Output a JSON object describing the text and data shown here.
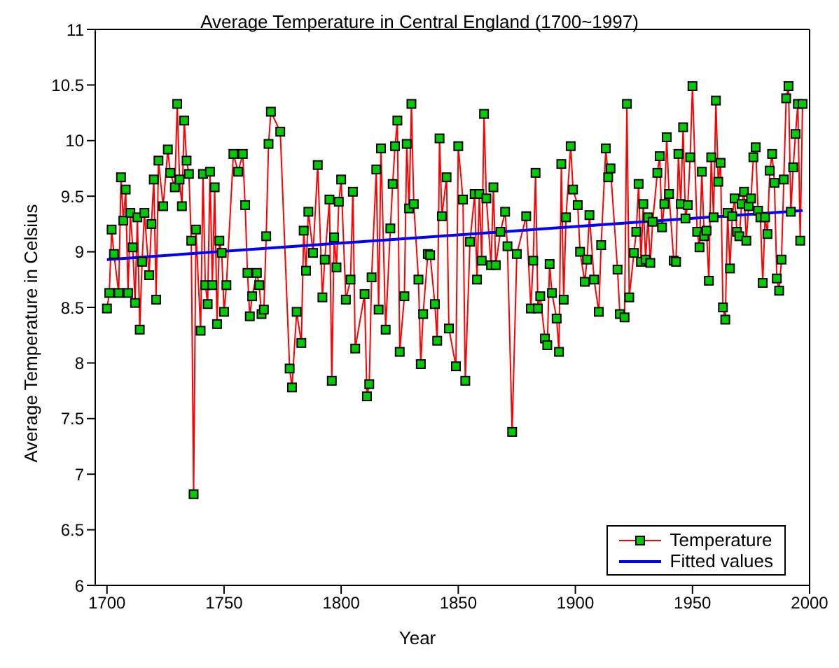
{
  "chart_data": {
    "type": "line",
    "title": "Average Temperature in Central England (1700~1997)",
    "xlabel": "Year",
    "ylabel": "Average Temperature in Celsius",
    "xlim": [
      1695,
      2000
    ],
    "xticks": [
      1700,
      1750,
      1800,
      1850,
      1900,
      1950,
      2000
    ],
    "ylim": [
      6,
      11
    ],
    "yticks": [
      6,
      6.5,
      7,
      7.5,
      8,
      8.5,
      9,
      9.5,
      10,
      10.5,
      11
    ],
    "legend": "bottom right",
    "series": [
      {
        "name": "Temperature",
        "color": "#ff0000",
        "marker": "square",
        "line_style": "solid",
        "x": [
          1700,
          1701,
          1702,
          1703,
          1705,
          1706,
          1707,
          1708,
          1709,
          1710,
          1711,
          1712,
          1713,
          1714,
          1715,
          1716,
          1718,
          1719,
          1720,
          1721,
          1722,
          1724,
          1726,
          1727,
          1729,
          1730,
          1731,
          1732,
          1733,
          1734,
          1735,
          1736,
          1737,
          1738,
          1740,
          1741,
          1742,
          1743,
          1744,
          1745,
          1746,
          1747,
          1748,
          1749,
          1750,
          1751,
          1754,
          1756,
          1758,
          1759,
          1760,
          1761,
          1762,
          1764,
          1765,
          1766,
          1767,
          1768,
          1769,
          1770,
          1774,
          1778,
          1779,
          1781,
          1783,
          1784,
          1785,
          1786,
          1788,
          1790,
          1792,
          1793,
          1795,
          1796,
          1797,
          1798,
          1799,
          1800,
          1802,
          1804,
          1805,
          1806,
          1810,
          1811,
          1812,
          1813,
          1815,
          1816,
          1817,
          1819,
          1821,
          1822,
          1823,
          1824,
          1825,
          1827,
          1828,
          1829,
          1830,
          1831,
          1833,
          1834,
          1835,
          1837,
          1838,
          1840,
          1841,
          1842,
          1843,
          1845,
          1846,
          1849,
          1850,
          1852,
          1853,
          1855,
          1857,
          1858,
          1859,
          1860,
          1861,
          1862,
          1864,
          1865,
          1866,
          1868,
          1870,
          1871,
          1873,
          1875,
          1879,
          1881,
          1882,
          1883,
          1884,
          1885,
          1887,
          1888,
          1889,
          1890,
          1892,
          1893,
          1894,
          1895,
          1896,
          1898,
          1899,
          1901,
          1902,
          1904,
          1905,
          1906,
          1908,
          1910,
          1911,
          1913,
          1914,
          1915,
          1918,
          1919,
          1921,
          1922,
          1923,
          1925,
          1926,
          1927,
          1928,
          1929,
          1930,
          1931,
          1932,
          1933,
          1935,
          1936,
          1937,
          1938,
          1939,
          1940,
          1942,
          1943,
          1944,
          1945,
          1946,
          1947,
          1948,
          1949,
          1950,
          1952,
          1953,
          1954,
          1955,
          1956,
          1957,
          1958,
          1959,
          1960,
          1961,
          1962,
          1963,
          1964,
          1965,
          1966,
          1967,
          1968,
          1969,
          1970,
          1971,
          1972,
          1973,
          1974,
          1975,
          1976,
          1977,
          1978,
          1979,
          1980,
          1981,
          1982,
          1983,
          1984,
          1985,
          1986,
          1987,
          1988,
          1989,
          1990,
          1991,
          1992,
          1993,
          1994,
          1995,
          1996,
          1997
        ],
        "values": [
          8.49,
          8.63,
          9.2,
          8.98,
          8.63,
          9.67,
          9.28,
          9.56,
          8.63,
          9.35,
          9.04,
          8.54,
          9.31,
          8.3,
          8.91,
          9.35,
          8.79,
          9.25,
          9.65,
          8.57,
          9.82,
          9.41,
          9.92,
          9.71,
          9.58,
          10.33,
          9.65,
          9.41,
          10.18,
          9.82,
          9.7,
          9.1,
          6.82,
          9.2,
          8.29,
          9.7,
          8.7,
          8.53,
          9.72,
          8.7,
          9.58,
          8.35,
          9.1,
          8.99,
          8.46,
          8.7,
          9.88,
          9.72,
          9.88,
          9.42,
          8.81,
          8.42,
          8.6,
          8.81,
          8.7,
          8.44,
          8.48,
          9.14,
          9.97,
          10.26,
          10.08,
          7.95,
          7.78,
          8.46,
          8.18,
          9.19,
          8.83,
          9.36,
          8.99,
          9.78,
          8.59,
          8.93,
          9.47,
          7.84,
          9.13,
          8.86,
          9.45,
          9.65,
          8.57,
          8.75,
          9.54,
          8.13,
          8.62,
          7.7,
          7.81,
          8.77,
          9.74,
          8.48,
          9.93,
          8.3,
          9.21,
          9.61,
          9.95,
          10.18,
          8.1,
          8.6,
          9.97,
          9.39,
          10.33,
          9.43,
          8.75,
          7.99,
          8.44,
          8.98,
          8.97,
          8.53,
          8.2,
          10.02,
          9.32,
          9.67,
          8.31,
          7.97,
          9.95,
          9.47,
          7.84,
          9.09,
          9.52,
          8.75,
          9.52,
          8.92,
          10.24,
          9.48,
          8.88,
          9.58,
          8.88,
          9.18,
          9.36,
          9.05,
          7.38,
          8.98,
          9.32,
          8.49,
          8.92,
          9.71,
          8.49,
          8.6,
          8.22,
          8.16,
          8.89,
          8.63,
          8.4,
          8.1,
          9.79,
          8.57,
          9.31,
          9.95,
          9.56,
          9.42,
          9,
          8.73,
          8.93,
          9.33,
          8.75,
          8.46,
          9.06,
          9.93,
          9.67,
          9.75,
          8.84,
          8.44,
          8.41,
          10.33,
          8.59,
          8.99,
          9.18,
          9.61,
          8.91,
          9.43,
          8.93,
          9.31,
          8.9,
          9.27,
          9.71,
          9.86,
          9.22,
          9.43,
          10.03,
          9.52,
          8.92,
          8.91,
          9.88,
          9.43,
          10.12,
          9.3,
          9.42,
          9.85,
          10.49,
          9.18,
          9.04,
          9.72,
          9.14,
          9.19,
          8.74,
          9.85,
          9.31,
          10.36,
          9.63,
          9.8,
          8.5,
          8.39,
          9.35,
          8.85,
          9.32,
          9.48,
          9.18,
          9.14,
          9.43,
          9.54,
          9.1,
          9.41,
          9.48,
          9.85,
          9.94,
          9.37,
          9.31,
          8.72,
          9.31,
          9.16,
          9.73,
          9.88,
          9.62,
          8.76,
          8.65,
          8.93,
          9.65,
          10.38,
          10.49,
          9.36,
          9.76,
          10.06,
          10.33,
          9.1,
          10.33
        ]
      },
      {
        "name": "Fitted values",
        "color": "#0000ff",
        "marker": "none",
        "line_style": "solid",
        "x": [
          1700,
          1997
        ],
        "values": [
          8.93,
          9.37
        ]
      }
    ]
  }
}
